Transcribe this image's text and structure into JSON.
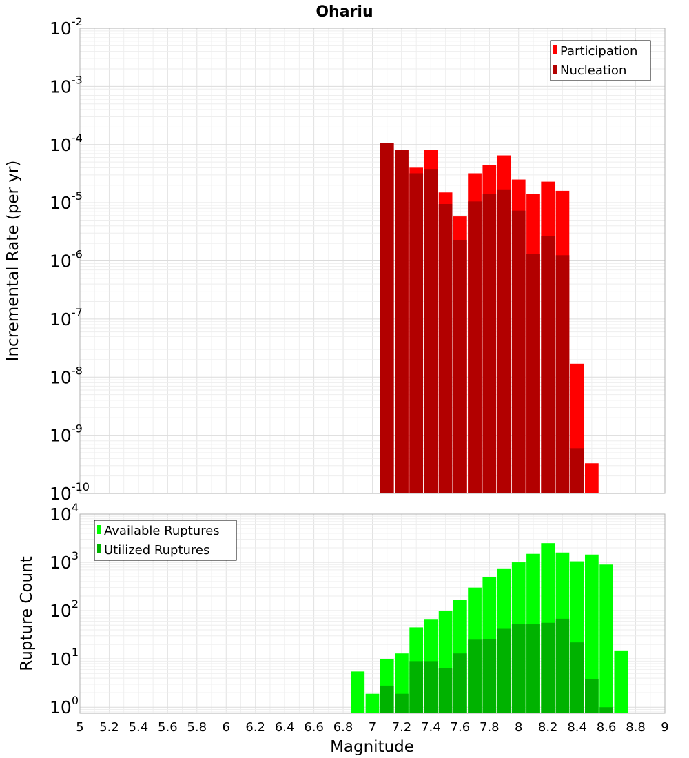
{
  "title": "Ohariu",
  "chart_data": [
    {
      "type": "bar",
      "ylabel": "Incremental Rate (per yr)",
      "xlim": [
        5,
        9
      ],
      "ylim": [
        1e-10,
        0.01
      ],
      "yscale": "log",
      "grid": true,
      "legend_position": "top-right",
      "x": [
        7.1,
        7.2,
        7.3,
        7.4,
        7.5,
        7.6,
        7.7,
        7.8,
        7.9,
        8.0,
        8.1,
        8.2,
        8.3,
        8.4,
        8.5
      ],
      "series": [
        {
          "name": "Participation",
          "color": "#ff0000",
          "values": [
            0.000105,
            8.2e-05,
            4e-05,
            8e-05,
            1.5e-05,
            5.8e-06,
            3.2e-05,
            4.5e-05,
            6.5e-05,
            2.5e-05,
            1.4e-05,
            2.3e-05,
            1.6e-05,
            1.7e-08,
            3.3e-10
          ]
        },
        {
          "name": "Nucleation",
          "color": "#b20000",
          "values": [
            0.000105,
            8.2e-05,
            3.2e-05,
            3.8e-05,
            9.5e-06,
            2.3e-06,
            1.05e-05,
            1.4e-05,
            1.65e-05,
            7.3e-06,
            1.3e-06,
            2.7e-06,
            1.25e-06,
            6e-10,
            null
          ]
        }
      ]
    },
    {
      "type": "bar",
      "xlabel": "Magnitude",
      "ylabel": "Rupture Count",
      "xlim": [
        5,
        9
      ],
      "xticks": [
        "5",
        "5.2",
        "5.4",
        "5.6",
        "5.8",
        "6",
        "6.2",
        "6.4",
        "6.6",
        "6.8",
        "7",
        "7.2",
        "7.4",
        "7.6",
        "7.8",
        "8",
        "8.2",
        "8.4",
        "8.6",
        "8.8",
        "9"
      ],
      "ylim": [
        0.75,
        10000
      ],
      "yscale": "log",
      "grid": true,
      "legend_position": "top-left",
      "x": [
        6.9,
        7.0,
        7.1,
        7.2,
        7.3,
        7.4,
        7.5,
        7.6,
        7.7,
        7.8,
        7.9,
        8.0,
        8.1,
        8.2,
        8.3,
        8.4,
        8.5,
        8.6,
        8.7
      ],
      "series": [
        {
          "name": "Available Ruptures",
          "color": "#00ff00",
          "values": [
            5.5,
            1.9,
            10,
            13,
            45,
            65,
            100,
            165,
            300,
            500,
            750,
            1000,
            1500,
            2500,
            1600,
            1050,
            1450,
            900,
            15
          ]
        },
        {
          "name": "Utilized Ruptures",
          "color": "#00b200",
          "values": [
            null,
            null,
            2.8,
            1.9,
            9,
            9,
            6.5,
            13,
            25,
            26,
            42,
            52,
            52,
            56,
            68,
            22,
            3.8,
            1.0,
            null
          ]
        }
      ]
    }
  ]
}
